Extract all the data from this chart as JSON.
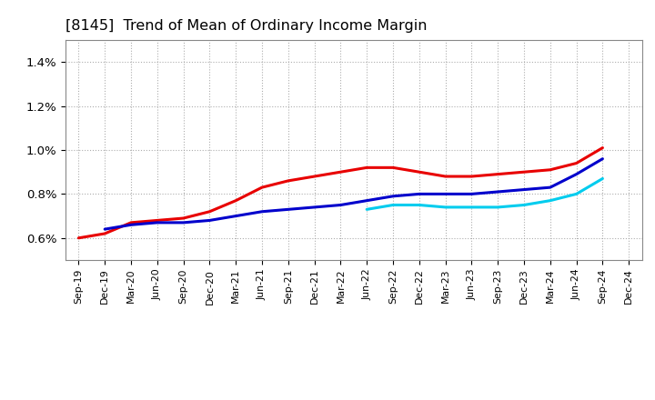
{
  "title": "[8145]  Trend of Mean of Ordinary Income Margin",
  "x_labels": [
    "Sep-19",
    "Dec-19",
    "Mar-20",
    "Jun-20",
    "Sep-20",
    "Dec-20",
    "Mar-21",
    "Jun-21",
    "Sep-21",
    "Dec-21",
    "Mar-22",
    "Jun-22",
    "Sep-22",
    "Dec-22",
    "Mar-23",
    "Jun-23",
    "Sep-23",
    "Dec-23",
    "Mar-24",
    "Jun-24",
    "Sep-24",
    "Dec-24"
  ],
  "series": {
    "3 Years": {
      "color": "#e80000",
      "linewidth": 2.2,
      "values": [
        0.006,
        0.0062,
        0.0067,
        0.0068,
        0.0069,
        0.0072,
        0.0077,
        0.0083,
        0.0086,
        0.0088,
        0.009,
        0.0092,
        0.0092,
        0.009,
        0.0088,
        0.0088,
        0.0089,
        0.009,
        0.0091,
        0.0094,
        0.0101,
        null
      ]
    },
    "5 Years": {
      "color": "#0000cc",
      "linewidth": 2.2,
      "values": [
        null,
        0.0064,
        0.0066,
        0.0067,
        0.0067,
        0.0068,
        0.007,
        0.0072,
        0.0073,
        0.0074,
        0.0075,
        0.0077,
        0.0079,
        0.008,
        0.008,
        0.008,
        0.0081,
        0.0082,
        0.0083,
        0.0089,
        0.0096,
        null
      ]
    },
    "7 Years": {
      "color": "#00ccee",
      "linewidth": 2.2,
      "values": [
        null,
        null,
        null,
        null,
        null,
        null,
        null,
        null,
        null,
        null,
        null,
        0.0073,
        0.0075,
        0.0075,
        0.0074,
        0.0074,
        0.0074,
        0.0075,
        0.0077,
        0.008,
        0.0087,
        null
      ]
    },
    "10 Years": {
      "color": "#008800",
      "linewidth": 2.2,
      "values": [
        null,
        null,
        null,
        null,
        null,
        null,
        null,
        null,
        null,
        null,
        null,
        null,
        null,
        null,
        null,
        null,
        null,
        null,
        null,
        null,
        null,
        null
      ]
    }
  },
  "ylim": [
    0.005,
    0.015
  ],
  "yticks": [
    0.006,
    0.008,
    0.01,
    0.012,
    0.014
  ],
  "ytick_labels": [
    "0.6%",
    "0.8%",
    "1.0%",
    "1.2%",
    "1.4%"
  ],
  "background_color": "#ffffff",
  "grid_color": "#999999"
}
